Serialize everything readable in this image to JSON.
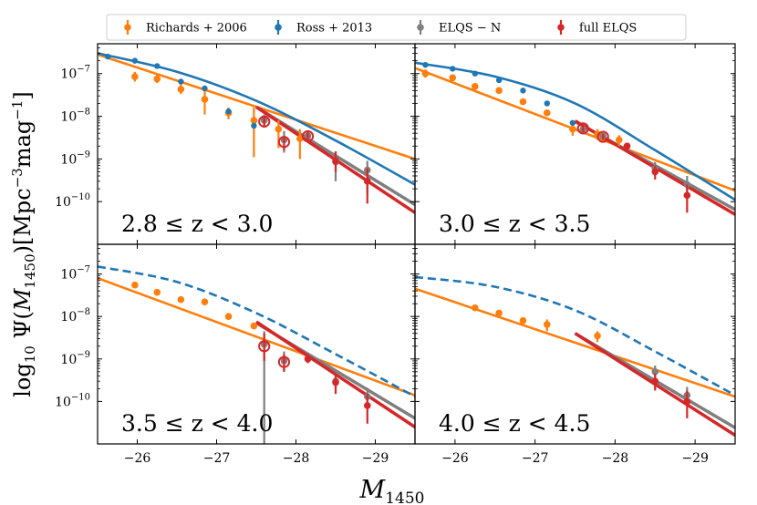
{
  "chart_data": {
    "type": "scatter",
    "xlabel": "M_1450",
    "ylabel": "log10 Ψ(M_1450)[Mpc^-3 mag^-1]",
    "x_axis": {
      "range": [
        -25.5,
        -29.5
      ],
      "ticks": [
        -26,
        -27,
        -28,
        -29
      ],
      "tick_labels": [
        "−26",
        "−27",
        "−28",
        "−29"
      ]
    },
    "y_axis": {
      "scale": "log",
      "range": [
        1e-11,
        5e-07
      ],
      "ticks": [
        1e-10,
        1e-09,
        1e-08,
        1e-07
      ],
      "tick_labels": [
        {
          "base": "10",
          "exp": "−10"
        },
        {
          "base": "10",
          "exp": "−9"
        },
        {
          "base": "10",
          "exp": "−8"
        },
        {
          "base": "10",
          "exp": "−7"
        }
      ]
    },
    "legend": {
      "placement": "top",
      "entries": [
        {
          "key": "richards",
          "label": "Richards + 2006",
          "color": "#ff7f0e"
        },
        {
          "key": "ross",
          "label": "Ross + 2013",
          "color": "#1f77b4"
        },
        {
          "key": "elqsn",
          "label": "ELQS − N",
          "color": "#7f7f7f"
        },
        {
          "key": "full",
          "label": "full ELQS",
          "color": "#d62728"
        }
      ]
    },
    "colors": {
      "richards": "#ff7f0e",
      "ross": "#1f77b4",
      "elqsn": "#7f7f7f",
      "full": "#d62728"
    },
    "panels": [
      {
        "label": "2.8 ≤ z < 3.0",
        "richards_points": [
          {
            "x": -25.97,
            "y": 8.5e-08,
            "lo": 6.5e-08,
            "hi": 1.1e-07
          },
          {
            "x": -26.25,
            "y": 7.5e-08,
            "lo": 6e-08,
            "hi": 9.5e-08
          },
          {
            "x": -26.55,
            "y": 4.3e-08,
            "lo": 3.3e-08,
            "hi": 5.6e-08
          },
          {
            "x": -26.85,
            "y": 2.5e-08,
            "lo": 1.1e-08,
            "hi": 4e-08
          },
          {
            "x": -27.15,
            "y": 1.2e-08,
            "lo": 8.5e-09,
            "hi": 1.6e-08
          },
          {
            "x": -27.47,
            "y": 8e-09,
            "lo": 1.1e-09,
            "hi": 1.6e-08
          },
          {
            "x": -27.78,
            "y": 5e-09,
            "lo": 1.8e-09,
            "hi": 8e-09
          },
          {
            "x": -28.05,
            "y": 3e-09,
            "lo": 1e-09,
            "hi": 5e-09
          }
        ],
        "ross_points": [
          {
            "x": -25.63,
            "y": 2.5e-07
          },
          {
            "x": -25.97,
            "y": 2e-07
          },
          {
            "x": -26.25,
            "y": 1.5e-07
          },
          {
            "x": -26.55,
            "y": 6.5e-08
          },
          {
            "x": -26.85,
            "y": 4.5e-08
          },
          {
            "x": -27.15,
            "y": 1.3e-08
          },
          {
            "x": -27.47,
            "y": 6e-09
          }
        ],
        "elqsn_points": [
          {
            "x": -27.6,
            "y": 8e-09,
            "lo": 5.5e-09,
            "hi": 1.1e-08,
            "open": false
          },
          {
            "x": -27.85,
            "y": 2.8e-09,
            "lo": 1.4e-09,
            "hi": 4.5e-09,
            "open": false
          },
          {
            "x": -28.15,
            "y": 3.5e-09,
            "lo": 2.5e-09,
            "hi": 4.5e-09,
            "open": false
          },
          {
            "x": -28.5,
            "y": 8.5e-10,
            "lo": 3e-10,
            "hi": 1.5e-09,
            "open": false
          },
          {
            "x": -28.9,
            "y": 5.5e-10,
            "lo": 1.5e-10,
            "hi": 9e-10,
            "open": false
          }
        ],
        "full_points": [
          {
            "x": -27.6,
            "y": 7.5e-09,
            "lo": 5.5e-09,
            "hi": 1e-08,
            "open": true
          },
          {
            "x": -27.85,
            "y": 2.5e-09,
            "lo": 1.6e-09,
            "hi": 3.5e-09,
            "open": true
          },
          {
            "x": -28.15,
            "y": 3.4e-09,
            "lo": 2.5e-09,
            "hi": 4.5e-09,
            "open": true
          },
          {
            "x": -28.5,
            "y": 9e-10,
            "lo": 5e-10,
            "hi": 1.5e-09,
            "open": false
          },
          {
            "x": -28.9,
            "y": 3e-10,
            "lo": 9e-11,
            "hi": 6e-10,
            "open": false
          }
        ],
        "richards_line": [
          [
            -25.5,
            2.8e-07
          ],
          [
            -29.5,
            1e-09
          ]
        ],
        "ross_line": [
          [
            -25.5,
            3e-07
          ],
          [
            -26.5,
            1.1e-07
          ],
          [
            -27.5,
            2.3e-08
          ],
          [
            -28.5,
            2.7e-09
          ],
          [
            -29.5,
            2.5e-10
          ]
        ],
        "ross_dashed": false,
        "elqsn_line": [
          [
            -27.5,
            1.65e-08
          ],
          [
            -29.5,
            8.5e-11
          ]
        ],
        "full_line": [
          [
            -27.5,
            1.65e-08
          ],
          [
            -29.5,
            5.5e-11
          ]
        ]
      },
      {
        "label": "3.0 ≤ z < 3.5",
        "richards_points": [
          {
            "x": -25.63,
            "y": 1e-07,
            "lo": 8e-08,
            "hi": 1.25e-07
          },
          {
            "x": -25.97,
            "y": 8e-08
          },
          {
            "x": -26.25,
            "y": 5e-08
          },
          {
            "x": -26.55,
            "y": 4e-08
          },
          {
            "x": -26.85,
            "y": 2.2e-08
          },
          {
            "x": -27.15,
            "y": 1.2e-08
          },
          {
            "x": -27.47,
            "y": 5e-09,
            "lo": 3.5e-09,
            "hi": 7e-09
          },
          {
            "x": -27.78,
            "y": 3.8e-09,
            "lo": 2.8e-09,
            "hi": 5e-09
          },
          {
            "x": -28.05,
            "y": 2.8e-09,
            "lo": 2e-09,
            "hi": 3.6e-09
          }
        ],
        "ross_points": [
          {
            "x": -25.63,
            "y": 1.6e-07
          },
          {
            "x": -25.97,
            "y": 1.3e-07
          },
          {
            "x": -26.25,
            "y": 1e-07
          },
          {
            "x": -26.55,
            "y": 7e-08
          },
          {
            "x": -26.85,
            "y": 4e-08
          },
          {
            "x": -27.15,
            "y": 2e-08
          },
          {
            "x": -27.47,
            "y": 7e-09
          }
        ],
        "elqsn_points": [
          {
            "x": -27.6,
            "y": 5e-09,
            "lo": 4.2e-09,
            "hi": 6e-09,
            "open": false
          },
          {
            "x": -27.85,
            "y": 3.4e-09,
            "lo": 2.9e-09,
            "hi": 4e-09,
            "open": false
          },
          {
            "x": -28.15,
            "y": 2e-09,
            "lo": 1.7e-09,
            "hi": 2.4e-09,
            "open": false
          },
          {
            "x": -28.5,
            "y": 6e-10,
            "lo": 4e-10,
            "hi": 8.5e-10,
            "open": false
          },
          {
            "x": -28.9,
            "y": 2.5e-10,
            "lo": 1.2e-10,
            "hi": 4e-10,
            "open": false
          }
        ],
        "full_points": [
          {
            "x": -27.6,
            "y": 5.2e-09,
            "lo": 4.3e-09,
            "hi": 6.2e-09,
            "open": true
          },
          {
            "x": -27.85,
            "y": 3.3e-09,
            "lo": 2.8e-09,
            "hi": 3.9e-09,
            "open": true
          },
          {
            "x": -28.15,
            "y": 2e-09,
            "lo": 1.7e-09,
            "hi": 2.4e-09,
            "open": false
          },
          {
            "x": -28.5,
            "y": 5e-10,
            "lo": 3.3e-10,
            "hi": 7e-10,
            "open": false
          },
          {
            "x": -28.9,
            "y": 1.4e-10,
            "lo": 5.5e-11,
            "hi": 2.5e-10,
            "open": false
          }
        ],
        "richards_line": [
          [
            -25.5,
            1.35e-07
          ],
          [
            -29.5,
            1.8e-10
          ]
        ],
        "ross_line": [
          [
            -25.5,
            1.8e-07
          ],
          [
            -26.5,
            8.5e-08
          ],
          [
            -27.5,
            2e-08
          ],
          [
            -28.5,
            1.6e-09
          ],
          [
            -29.5,
            1.1e-10
          ]
        ],
        "ross_dashed": false,
        "elqsn_line": [
          [
            -27.5,
            7.5e-09
          ],
          [
            -29.5,
            6.5e-11
          ]
        ],
        "full_line": [
          [
            -27.5,
            7.8e-09
          ],
          [
            -29.5,
            5e-11
          ]
        ]
      },
      {
        "label": "3.5 ≤ z < 4.0",
        "richards_points": [
          {
            "x": -25.97,
            "y": 5.5e-08
          },
          {
            "x": -26.25,
            "y": 3.7e-08
          },
          {
            "x": -26.55,
            "y": 2.5e-08
          },
          {
            "x": -26.85,
            "y": 2.2e-08
          },
          {
            "x": -27.15,
            "y": 1e-08
          },
          {
            "x": -27.47,
            "y": 6e-09
          }
        ],
        "ross_points": [],
        "elqsn_points": [
          {
            "x": -27.6,
            "y": 2.2e-09,
            "lo": 1e-11,
            "hi": 4.5e-09,
            "open": false
          },
          {
            "x": -27.85,
            "y": 9e-10,
            "lo": 5e-10,
            "hi": 1.5e-09,
            "open": false
          },
          {
            "x": -28.15,
            "y": 1e-09,
            "lo": 8e-10,
            "hi": 1.3e-09,
            "open": false
          },
          {
            "x": -28.5,
            "y": 3e-10,
            "lo": 2e-10,
            "hi": 4.3e-10,
            "open": false
          },
          {
            "x": -28.9,
            "y": 1.3e-10,
            "lo": 7.5e-11,
            "hi": 2.1e-10,
            "open": false
          }
        ],
        "full_points": [
          {
            "x": -27.6,
            "y": 2e-09,
            "lo": 9e-10,
            "hi": 4e-09,
            "open": true
          },
          {
            "x": -27.85,
            "y": 8.5e-10,
            "lo": 5e-10,
            "hi": 1.3e-09,
            "open": true
          },
          {
            "x": -28.15,
            "y": 1e-09,
            "lo": 8e-10,
            "hi": 1.3e-09,
            "open": false
          },
          {
            "x": -28.5,
            "y": 2.8e-10,
            "lo": 1.5e-10,
            "hi": 4.5e-10,
            "open": false
          },
          {
            "x": -28.9,
            "y": 8e-11,
            "lo": 3e-11,
            "hi": 1.5e-10,
            "open": false
          }
        ],
        "richards_line": [
          [
            -25.5,
            8e-08
          ],
          [
            -29.5,
            1.4e-10
          ]
        ],
        "ross_line": [
          [
            -25.5,
            1.5e-07
          ],
          [
            -26.5,
            6.5e-08
          ],
          [
            -27.5,
            1.2e-08
          ],
          [
            -28.5,
            1.3e-09
          ],
          [
            -29.5,
            1.3e-10
          ]
        ],
        "ross_dashed": true,
        "elqsn_line": [
          [
            -27.5,
            7e-09
          ],
          [
            -29.5,
            4e-11
          ]
        ],
        "full_line": [
          [
            -27.5,
            7.5e-09
          ],
          [
            -29.5,
            2.5e-11
          ]
        ]
      },
      {
        "label": "4.0 ≤ z < 4.5",
        "richards_points": [
          {
            "x": -26.25,
            "y": 1.6e-08
          },
          {
            "x": -26.55,
            "y": 1.2e-08
          },
          {
            "x": -26.85,
            "y": 8e-09
          },
          {
            "x": -27.15,
            "y": 6.5e-09,
            "lo": 4.5e-09,
            "hi": 8.5e-09
          },
          {
            "x": -27.78,
            "y": 3.5e-09,
            "lo": 2.5e-09,
            "hi": 4.5e-09
          }
        ],
        "ross_points": [],
        "elqsn_points": [
          {
            "x": -28.5,
            "y": 5e-10,
            "lo": 3.5e-10,
            "hi": 7e-10,
            "open": false
          },
          {
            "x": -28.9,
            "y": 1.4e-10,
            "lo": 8e-11,
            "hi": 2.2e-10,
            "open": false
          }
        ],
        "full_points": [
          {
            "x": -28.5,
            "y": 3e-10,
            "lo": 1.8e-10,
            "hi": 4.5e-10,
            "open": false
          },
          {
            "x": -28.9,
            "y": 1e-10,
            "lo": 4e-11,
            "hi": 1.8e-10,
            "open": false
          }
        ],
        "richards_line": [
          [
            -25.5,
            4.5e-08
          ],
          [
            -29.5,
            1.3e-10
          ]
        ],
        "ross_line": [
          [
            -25.5,
            8.5e-08
          ],
          [
            -26.5,
            5e-08
          ],
          [
            -27.5,
            1.4e-08
          ],
          [
            -28.5,
            1.5e-09
          ],
          [
            -29.5,
            1.4e-10
          ]
        ],
        "ross_dashed": true,
        "elqsn_line": [
          [
            -27.5,
            4e-09
          ],
          [
            -29.5,
            2.4e-11
          ]
        ],
        "full_line": [
          [
            -27.5,
            4e-09
          ],
          [
            -29.5,
            1.6e-11
          ]
        ]
      }
    ]
  }
}
